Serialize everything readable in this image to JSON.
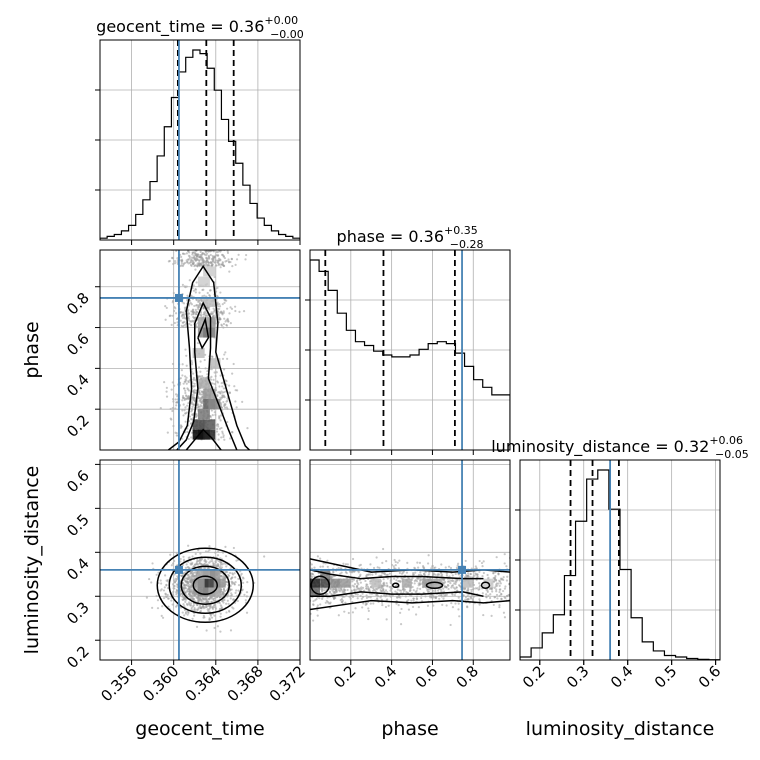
{
  "chart_data": {
    "type": "corner",
    "parameters": [
      "geocent_time",
      "phase",
      "luminosity_distance"
    ],
    "truths": [
      0.3605,
      0.745,
      0.36
    ],
    "truth_color": "#4682b4",
    "titles": [
      {
        "name": "geocent_time",
        "median": "0.36",
        "plus": "+0.00",
        "minus": "−0.00"
      },
      {
        "name": "phase",
        "median": "0.36",
        "plus": "+0.35",
        "minus": "−0.28"
      },
      {
        "name": "luminosity_distance",
        "median": "0.32",
        "plus": "+0.06",
        "minus": "−0.05"
      }
    ],
    "ranges": [
      [
        0.353,
        0.372
      ],
      [
        0.0,
        0.98
      ],
      [
        0.155,
        0.61
      ]
    ],
    "ticks": [
      {
        "values": [
          0.356,
          0.36,
          0.364,
          0.368,
          0.372
        ],
        "labels": [
          "0.356",
          "0.360",
          "0.364",
          "0.368",
          "0.372"
        ]
      },
      {
        "values": [
          0.2,
          0.4,
          0.6,
          0.8
        ],
        "labels": [
          "0.2",
          "0.4",
          "0.6",
          "0.8"
        ]
      },
      {
        "values": [
          0.2,
          0.3,
          0.4,
          0.5,
          0.6
        ],
        "labels": [
          "0.2",
          "0.3",
          "0.4",
          "0.5",
          "0.6"
        ]
      }
    ],
    "quantiles": [
      [
        0.3604,
        0.3631,
        0.3657
      ],
      [
        0.075,
        0.36,
        0.71
      ],
      [
        0.27,
        0.32,
        0.38
      ]
    ],
    "histograms": [
      {
        "edges": [
          0.353,
          0.372
        ],
        "counts": [
          0.5,
          1,
          1.5,
          2.5,
          4,
          7,
          11,
          16,
          23,
          31,
          39,
          46,
          50,
          52,
          51,
          47,
          41,
          33,
          27,
          21,
          15,
          10,
          6,
          4,
          2.5,
          1.5,
          1,
          0.5
        ]
      },
      {
        "edges": [
          0.0,
          0.98
        ],
        "counts": [
          100,
          94,
          84,
          72,
          63,
          57,
          55,
          52,
          50,
          49,
          49,
          50,
          53,
          56,
          57,
          56,
          51,
          44,
          37,
          33,
          29,
          29
        ]
      },
      {
        "edges": [
          0.155,
          0.61
        ],
        "counts": [
          1,
          4,
          9,
          15,
          28,
          46,
          60,
          63,
          50,
          30,
          14,
          6,
          3,
          1.5,
          1,
          0.5,
          0.2,
          0.1
        ]
      }
    ],
    "density_2d": [
      {
        "x": 1,
        "y": 0,
        "cx": 0.3628,
        "sx": 0.0014,
        "clusters": [
          [
            0.05,
            0.18,
            1.0
          ],
          [
            0.2,
            0.1,
            0.55
          ],
          [
            0.6,
            0.1,
            0.45
          ],
          [
            0.9,
            0.07,
            0.25
          ]
        ]
      },
      {
        "x": 2,
        "y": 0,
        "cx": 0.3628,
        "sx": 0.0016,
        "cy": 0.325,
        "sy": 0.03,
        "rho": 0.0
      },
      {
        "x": 2,
        "y": 1,
        "clusters": [
          [
            0.03,
            0.1,
            1.0
          ],
          [
            0.25,
            0.15,
            0.5
          ],
          [
            0.55,
            0.15,
            0.45
          ],
          [
            0.8,
            0.15,
            0.3
          ]
        ],
        "cy": 0.325,
        "sy": 0.025
      }
    ],
    "grid": true
  }
}
